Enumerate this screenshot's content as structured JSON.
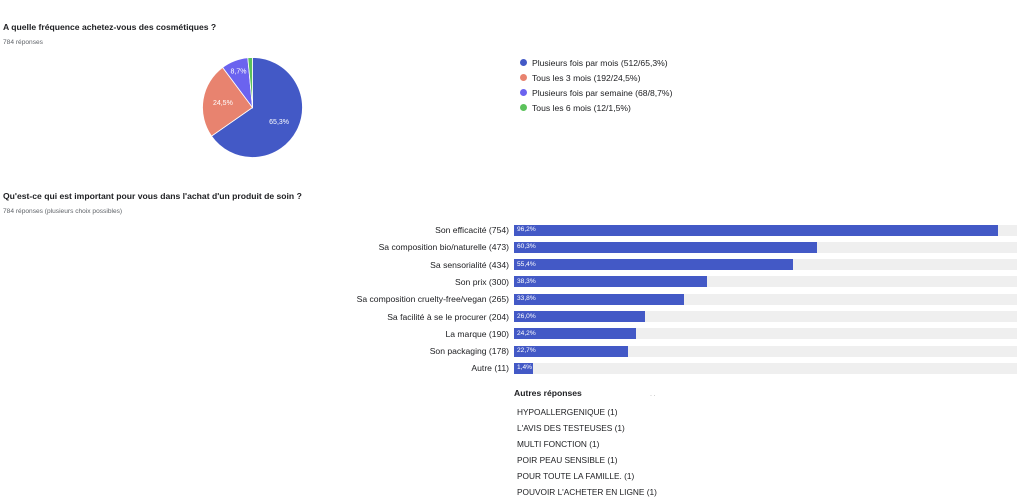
{
  "q1": {
    "title": "A quelle fréquence achetez-vous des cosmétiques ?",
    "subtitle": "784 réponses"
  },
  "q2": {
    "title": "Qu'est-ce qui est important pour vous dans l'achat d'un produit de soin ?",
    "subtitle": "784 réponses (plusieurs choix possibles)",
    "other_title": "Autres réponses",
    "other_responses": [
      "HYPOALLERGENIQUE (1)",
      "L'AVIS DES TESTEUSES (1)",
      "MULTI FONCTION (1)",
      "POIR PEAU SENSIBLE (1)",
      "POUR TOUTE LA FAMILLE. (1)",
      "POUVOIR L'ACHETER EN LIGNE (1)"
    ]
  },
  "chart_data": [
    {
      "type": "pie",
      "legend_position": "right",
      "slices": [
        {
          "label": "Plusieurs fois par mois (512/65,3%)",
          "value": 65.3,
          "data_label": "65,3%",
          "color": "#4359c6"
        },
        {
          "label": "Tous les 3 mois (192/24,5%)",
          "value": 24.5,
          "data_label": "24,5%",
          "color": "#e8836f"
        },
        {
          "label": "Plusieurs fois par semaine (68/8,7%)",
          "value": 8.7,
          "data_label": "8,7%",
          "color": "#6b63ef"
        },
        {
          "label": "Tous les 6 mois (12/1,5%)",
          "value": 1.5,
          "data_label": "",
          "color": "#5bc25b"
        }
      ]
    },
    {
      "type": "bar",
      "orientation": "horizontal",
      "bar_color": "#4359c6",
      "track_color": "#efefef",
      "xlim": [
        0,
        100
      ],
      "categories": [
        "Son efficacité (754)",
        "Sa composition bio/naturelle (473)",
        "Sa sensorialité (434)",
        "Son prix (300)",
        "Sa composition cruelty-free/vegan (265)",
        "Sa facilité à se le procurer (204)",
        "La marque (190)",
        "Son packaging (178)",
        "Autre (11)"
      ],
      "values": [
        96.2,
        60.3,
        55.4,
        38.3,
        33.8,
        26.0,
        24.2,
        22.7,
        1.4
      ],
      "value_labels": [
        "96,2%",
        "60,3%",
        "55,4%",
        "38,3%",
        "33,8%",
        "26,0%",
        "24,2%",
        "22,7%",
        "1,4%"
      ]
    }
  ]
}
